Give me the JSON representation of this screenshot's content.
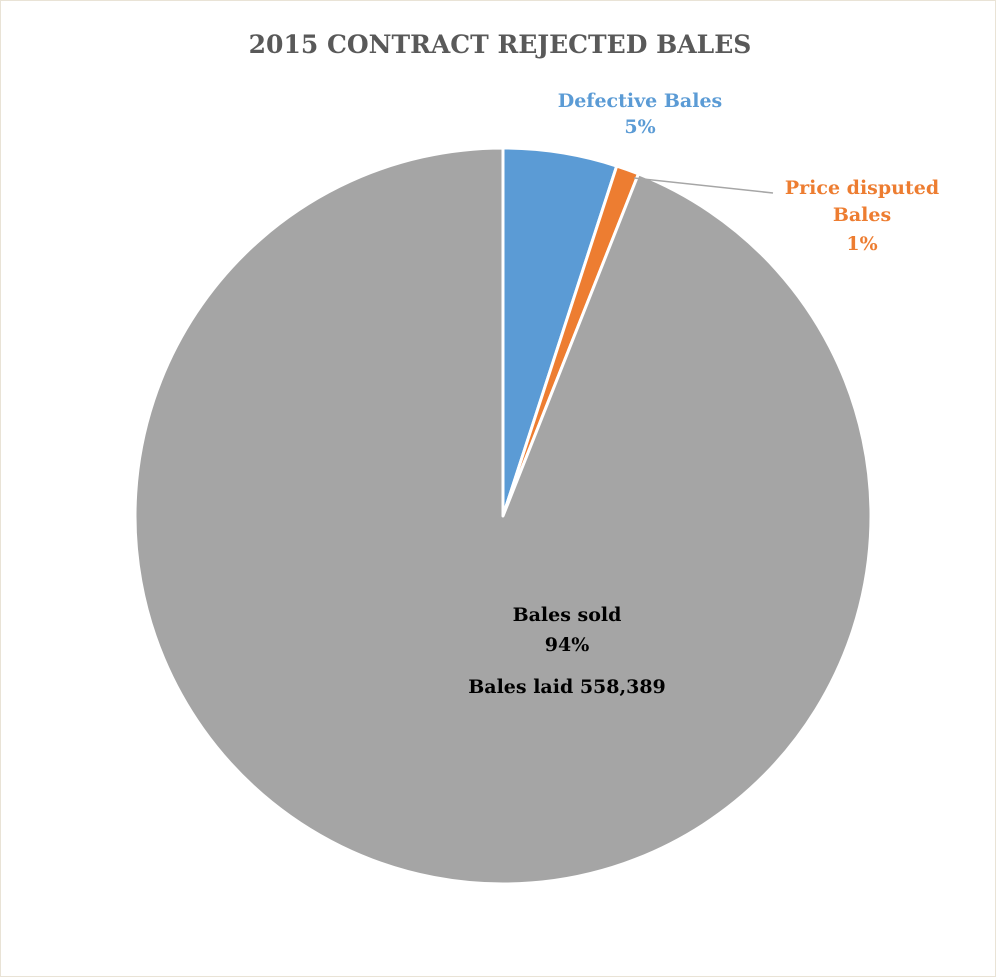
{
  "chart_data": {
    "type": "pie",
    "title": "2015 CONTRACT REJECTED BALES",
    "slices": [
      {
        "name": "Defective Bales",
        "value": 5,
        "pct_label": "5%",
        "color": "#5b9bd5"
      },
      {
        "name": "Price disputed Bales",
        "name_lines": [
          "Price disputed",
          "Bales"
        ],
        "value": 1,
        "pct_label": "1%",
        "color": "#ed7d31"
      },
      {
        "name": "Bales sold",
        "value": 94,
        "pct_label": "94%",
        "color": "#a5a5a5"
      }
    ],
    "annotation": "Bales laid 558,389",
    "legend": "none"
  }
}
